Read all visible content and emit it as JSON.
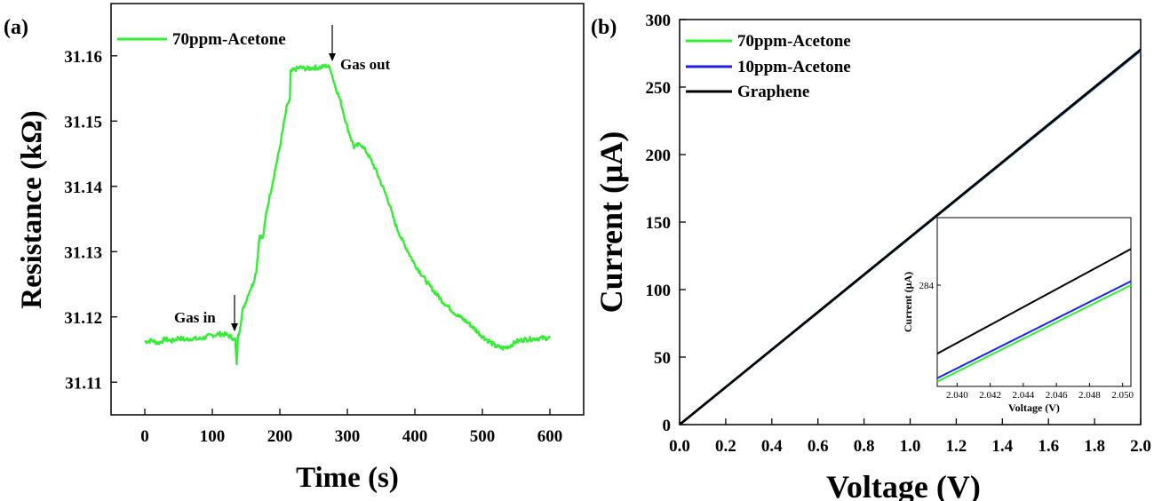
{
  "colors": {
    "acetone70": "#33ee33",
    "acetone10": "#1f1fe0",
    "graphene": "#000000"
  },
  "chart_data": [
    {
      "panel": "(a)",
      "type": "line",
      "title": "",
      "xlabel": "Time (s)",
      "ylabel": "Resistance (kΩ)",
      "xlim": [
        -50,
        650
      ],
      "ylim": [
        31.105,
        31.168
      ],
      "xticks": [
        0,
        100,
        200,
        300,
        400,
        500,
        600
      ],
      "yticks": [
        31.11,
        31.12,
        31.13,
        31.14,
        31.15,
        31.16
      ],
      "ytick_labels": [
        "31.11",
        "31.12",
        "31.13",
        "31.14",
        "31.15",
        "31.16"
      ],
      "legend_position": "top-left",
      "series": [
        {
          "name": "70ppm-Acetone",
          "color": "#33ee33",
          "x": [
            0,
            10,
            20,
            30,
            40,
            50,
            60,
            70,
            80,
            90,
            100,
            110,
            120,
            130,
            134,
            136,
            138,
            140,
            145,
            150,
            155,
            160,
            165,
            170,
            175,
            180,
            190,
            200,
            210,
            215,
            216,
            220,
            230,
            240,
            250,
            260,
            270,
            275,
            280,
            290,
            295,
            300,
            310,
            320,
            330,
            340,
            350,
            360,
            370,
            380,
            390,
            400,
            420,
            440,
            460,
            480,
            500,
            520,
            530,
            540,
            550,
            560,
            580,
            600
          ],
          "y": [
            31.1162,
            31.1164,
            31.116,
            31.1166,
            31.1163,
            31.1168,
            31.1165,
            31.1167,
            31.1166,
            31.1169,
            31.1172,
            31.1174,
            31.1173,
            31.1168,
            31.1165,
            31.1125,
            31.117,
            31.1178,
            31.121,
            31.1225,
            31.124,
            31.125,
            31.127,
            31.1325,
            31.132,
            31.136,
            31.141,
            31.146,
            31.152,
            31.1535,
            31.1575,
            31.1578,
            31.1582,
            31.158,
            31.1582,
            31.1582,
            31.1585,
            31.158,
            31.156,
            31.153,
            31.151,
            31.149,
            31.146,
            31.1465,
            31.145,
            31.143,
            31.1405,
            31.138,
            31.1345,
            31.132,
            31.13,
            31.128,
            31.125,
            31.1225,
            31.1205,
            31.119,
            31.117,
            31.1155,
            31.1152,
            31.1155,
            31.1162,
            31.1165,
            31.1167,
            31.1168
          ]
        }
      ],
      "annotations": [
        {
          "text": "Gas in",
          "x": 135,
          "y": 31.117
        },
        {
          "text": "Gas out",
          "x": 272,
          "y": 31.1585
        }
      ]
    },
    {
      "panel": "(b)",
      "type": "line",
      "title": "",
      "xlabel": "Voltage (V)",
      "ylabel": "Current (μA)",
      "xlim": [
        0.0,
        2.0
      ],
      "ylim": [
        0,
        300
      ],
      "xticks": [
        0.0,
        0.2,
        0.4,
        0.6,
        0.8,
        1.0,
        1.2,
        1.4,
        1.6,
        1.8,
        2.0
      ],
      "xtick_labels": [
        "0.0",
        "0.2",
        "0.4",
        "0.6",
        "0.8",
        "1.0",
        "1.2",
        "1.4",
        "1.6",
        "1.8",
        "2.0"
      ],
      "yticks": [
        0,
        50,
        100,
        150,
        200,
        250,
        300
      ],
      "legend_position": "top-left",
      "series": [
        {
          "name": "70ppm-Acetone",
          "color": "#33ee33",
          "x": [
            0.0,
            2.0
          ],
          "y": [
            0,
            277
          ]
        },
        {
          "name": "10ppm-Acetone",
          "color": "#1f1fe0",
          "x": [
            0.0,
            2.0
          ],
          "y": [
            0,
            277.3
          ]
        },
        {
          "name": "Graphene",
          "color": "#000000",
          "x": [
            0.0,
            2.0
          ],
          "y": [
            0,
            277.8
          ]
        }
      ],
      "inset": {
        "xlabel": "Voltage (V)",
        "ylabel": "Current (μA)",
        "xlim": [
          2.0388,
          2.0505
        ],
        "ylim": [
          281.9,
          285.4
        ],
        "xticks": [
          2.04,
          2.042,
          2.044,
          2.046,
          2.048,
          2.05
        ],
        "xtick_labels": [
          "2.040",
          "2.042",
          "2.044",
          "2.046",
          "2.048",
          "2.050"
        ],
        "yticks": [
          284
        ],
        "ytick_labels": [
          "284"
        ],
        "series": [
          {
            "name": "70ppm-Acetone",
            "color": "#33ee33",
            "x": [
              2.0388,
              2.0505
            ],
            "y": [
              282.0,
              284.0
            ]
          },
          {
            "name": "10ppm-Acetone",
            "color": "#1f1fe0",
            "x": [
              2.0388,
              2.0505
            ],
            "y": [
              282.07,
              284.08
            ]
          },
          {
            "name": "Graphene",
            "color": "#000000",
            "x": [
              2.0388,
              2.0505
            ],
            "y": [
              282.58,
              284.75
            ]
          }
        ]
      }
    }
  ]
}
